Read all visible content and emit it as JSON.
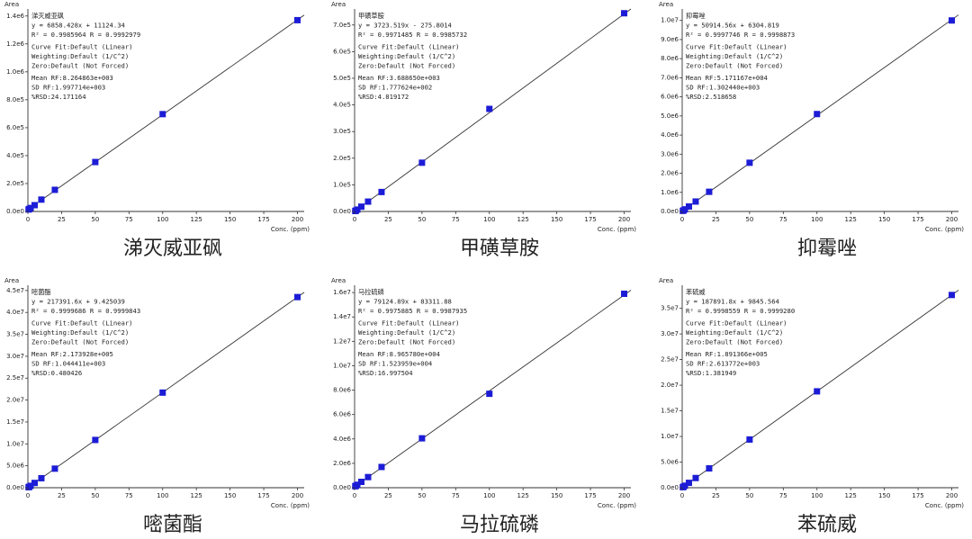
{
  "chart_data": [
    {
      "type": "scatter",
      "title": "涕灭威亚砜",
      "y_label": "Area",
      "x_label": "Conc. (ppm)",
      "annotations": [
        "涕灭威亚砜",
        "y = 6858.428x + 11124.34",
        "R² = 0.9985964   R = 0.9992979",
        "Curve Fit:Default (Linear)",
        "Weighting:Default (1/C^2)",
        "Zero:Default (Not Forced)",
        "Mean RF:8.264863e+003",
        "SD RF:1.997714e+003",
        "%RSD:24.171164"
      ],
      "x": [
        0.5,
        1,
        2,
        5,
        10,
        20,
        50,
        100,
        200
      ],
      "values": [
        14000,
        18000,
        25000,
        45000,
        85000,
        155000,
        354000,
        697000,
        1370000
      ],
      "color": "#1c1cd6",
      "xlim": [
        0,
        205
      ],
      "xticks": [
        0,
        25,
        50,
        75,
        100,
        125,
        150,
        175,
        200
      ],
      "ylim": [
        0,
        1450000
      ],
      "yticks": [
        {
          "value": 0,
          "label": "0.0e0"
        },
        {
          "value": 200000,
          "label": "2.0e5"
        },
        {
          "value": 400000,
          "label": "4.0e5"
        },
        {
          "value": 600000,
          "label": "6.0e5"
        },
        {
          "value": 800000,
          "label": "8.0e5"
        },
        {
          "value": 1000000,
          "label": "1.0e6"
        },
        {
          "value": 1200000,
          "label": "1.2e6"
        },
        {
          "value": 1400000,
          "label": "1.4e6"
        }
      ]
    },
    {
      "type": "scatter",
      "title": "甲磺草胺",
      "y_label": "Area",
      "x_label": "Conc. (ppm)",
      "annotations": [
        "甲磺草胺",
        "y = 3723.519x - 275.8014",
        "R² = 0.9971485   R = 0.9985732",
        "Curve Fit:Default (Linear)",
        "Weighting:Default (1/C^2)",
        "Zero:Default (Not Forced)",
        "Mean RF:3.688650e+003",
        "SD RF:1.777624e+002",
        "%RSD:4.819172"
      ],
      "x": [
        0.5,
        1,
        2,
        5,
        10,
        20,
        50,
        100,
        200
      ],
      "values": [
        1600,
        3500,
        7000,
        18000,
        37000,
        73000,
        183000,
        385000,
        744000
      ],
      "color": "#1c1cd6",
      "xlim": [
        0,
        205
      ],
      "xticks": [
        0,
        25,
        50,
        75,
        100,
        125,
        150,
        175,
        200
      ],
      "ylim": [
        0,
        760000
      ],
      "yticks": [
        {
          "value": 0,
          "label": "0.0e0"
        },
        {
          "value": 100000,
          "label": "1.0e5"
        },
        {
          "value": 200000,
          "label": "2.0e5"
        },
        {
          "value": 300000,
          "label": "3.0e5"
        },
        {
          "value": 400000,
          "label": "4.0e5"
        },
        {
          "value": 500000,
          "label": "5.0e5"
        },
        {
          "value": 600000,
          "label": "6.0e5"
        },
        {
          "value": 700000,
          "label": "7.0e5"
        }
      ]
    },
    {
      "type": "scatter",
      "title": "抑霉唑",
      "y_label": "Area",
      "x_label": "Conc. (ppm)",
      "annotations": [
        "抑霉唑",
        "y = 50914.56x + 6304.819",
        "R² = 0.9997746   R = 0.9998873",
        "Curve Fit:Default (Linear)",
        "Weighting:Default (1/C^2)",
        "Zero:Default (Not Forced)",
        "Mean RF:5.171167e+004",
        "SD RF:1.302440e+003",
        "%RSD:2.518658"
      ],
      "x": [
        0.5,
        1,
        2,
        5,
        10,
        20,
        50,
        100,
        200
      ],
      "values": [
        32000,
        57000,
        110000,
        260000,
        520000,
        1030000,
        2550000,
        5100000,
        10000000
      ],
      "color": "#1c1cd6",
      "xlim": [
        0,
        205
      ],
      "xticks": [
        0,
        25,
        50,
        75,
        100,
        125,
        150,
        175,
        200
      ],
      "ylim": [
        0,
        10600000
      ],
      "yticks": [
        {
          "value": 0,
          "label": "0.0e0"
        },
        {
          "value": 1000000,
          "label": "1.0e6"
        },
        {
          "value": 2000000,
          "label": "2.0e6"
        },
        {
          "value": 3000000,
          "label": "3.0e6"
        },
        {
          "value": 4000000,
          "label": "4.0e6"
        },
        {
          "value": 5000000,
          "label": "5.0e6"
        },
        {
          "value": 6000000,
          "label": "6.0e6"
        },
        {
          "value": 7000000,
          "label": "7.0e6"
        },
        {
          "value": 8000000,
          "label": "8.0e6"
        },
        {
          "value": 9000000,
          "label": "9.0e6"
        },
        {
          "value": 10000000,
          "label": "1.0e7"
        }
      ]
    },
    {
      "type": "scatter",
      "title": "嘧菌酯",
      "y_label": "Area",
      "x_label": "Conc. (ppm)",
      "annotations": [
        "嘧菌酯",
        "y = 217391.6x + 9.425039",
        "R² = 0.9999686   R = 0.9999843",
        "Curve Fit:Default (Linear)",
        "Weighting:Default (1/C^2)",
        "Zero:Default (Not Forced)",
        "Mean RF:2.173928e+005",
        "SD RF:1.044411e+003",
        "%RSD:0.480426"
      ],
      "x": [
        0.5,
        1,
        2,
        5,
        10,
        20,
        50,
        100,
        200
      ],
      "values": [
        110000,
        220000,
        430000,
        1090000,
        2170000,
        4350000,
        10900000,
        21700000,
        43500000
      ],
      "color": "#1c1cd6",
      "xlim": [
        0,
        205
      ],
      "xticks": [
        0,
        25,
        50,
        75,
        100,
        125,
        150,
        175,
        200
      ],
      "ylim": [
        0,
        46200000
      ],
      "yticks": [
        {
          "value": 0,
          "label": "0.0e0"
        },
        {
          "value": 5000000,
          "label": "5.0e6"
        },
        {
          "value": 10000000,
          "label": "1.0e7"
        },
        {
          "value": 15000000,
          "label": "1.5e7"
        },
        {
          "value": 20000000,
          "label": "2.0e7"
        },
        {
          "value": 25000000,
          "label": "2.5e7"
        },
        {
          "value": 30000000,
          "label": "3.0e7"
        },
        {
          "value": 35000000,
          "label": "3.5e7"
        },
        {
          "value": 40000000,
          "label": "4.0e7"
        },
        {
          "value": 45000000,
          "label": "4.5e7"
        }
      ]
    },
    {
      "type": "scatter",
      "title": "马拉硫磷",
      "y_label": "Area",
      "x_label": "Conc. (ppm)",
      "annotations": [
        "马拉硫磷",
        "y = 79124.89x + 83311.88",
        "R² = 0.9975885   R = 0.9987935",
        "Curve Fit:Default (Linear)",
        "Weighting:Default (1/C^2)",
        "Zero:Default (Not Forced)",
        "Mean RF:8.965780e+004",
        "SD RF:1.523959e+004",
        "%RSD:16.997504"
      ],
      "x": [
        0.5,
        1,
        2,
        5,
        10,
        20,
        50,
        100,
        200
      ],
      "values": [
        120000,
        160000,
        240000,
        480000,
        870000,
        1700000,
        4050000,
        7700000,
        15900000
      ],
      "color": "#1c1cd6",
      "xlim": [
        0,
        205
      ],
      "xticks": [
        0,
        25,
        50,
        75,
        100,
        125,
        150,
        175,
        200
      ],
      "ylim": [
        0,
        16600000
      ],
      "yticks": [
        {
          "value": 0,
          "label": "0.0e0"
        },
        {
          "value": 2000000,
          "label": "2.0e6"
        },
        {
          "value": 4000000,
          "label": "4.0e6"
        },
        {
          "value": 6000000,
          "label": "6.0e6"
        },
        {
          "value": 8000000,
          "label": "8.0e6"
        },
        {
          "value": 10000000,
          "label": "1.0e7"
        },
        {
          "value": 12000000,
          "label": "1.2e7"
        },
        {
          "value": 14000000,
          "label": "1.4e7"
        },
        {
          "value": 16000000,
          "label": "1.6e7"
        }
      ]
    },
    {
      "type": "scatter",
      "title": "苯硫威",
      "y_label": "Area",
      "x_label": "Conc. (ppm)",
      "annotations": [
        "苯硫威",
        "y = 187891.8x + 9845.564",
        "R² = 0.9998559   R = 0.9999280",
        "Curve Fit:Default (Linear)",
        "Weighting:Default (1/C^2)",
        "Zero:Default (Not Forced)",
        "Mean RF:1.891366e+005",
        "SD RF:2.613772e+003",
        "%RSD:1.381949"
      ],
      "x": [
        0.5,
        1,
        2,
        5,
        10,
        20,
        50,
        100,
        200
      ],
      "values": [
        100000,
        200000,
        390000,
        950000,
        1890000,
        3770000,
        9400000,
        18800000,
        37600000
      ],
      "color": "#1c1cd6",
      "xlim": [
        0,
        205
      ],
      "xticks": [
        0,
        25,
        50,
        75,
        100,
        125,
        150,
        175,
        200
      ],
      "ylim": [
        0,
        39500000
      ],
      "yticks": [
        {
          "value": 0,
          "label": "0.0e0"
        },
        {
          "value": 5000000,
          "label": "5.0e6"
        },
        {
          "value": 10000000,
          "label": "1.0e7"
        },
        {
          "value": 15000000,
          "label": "1.5e7"
        },
        {
          "value": 20000000,
          "label": "2.0e7"
        },
        {
          "value": 25000000,
          "label": "2.5e7"
        },
        {
          "value": 30000000,
          "label": "3.0e7"
        },
        {
          "value": 35000000,
          "label": "3.5e7"
        }
      ]
    }
  ]
}
